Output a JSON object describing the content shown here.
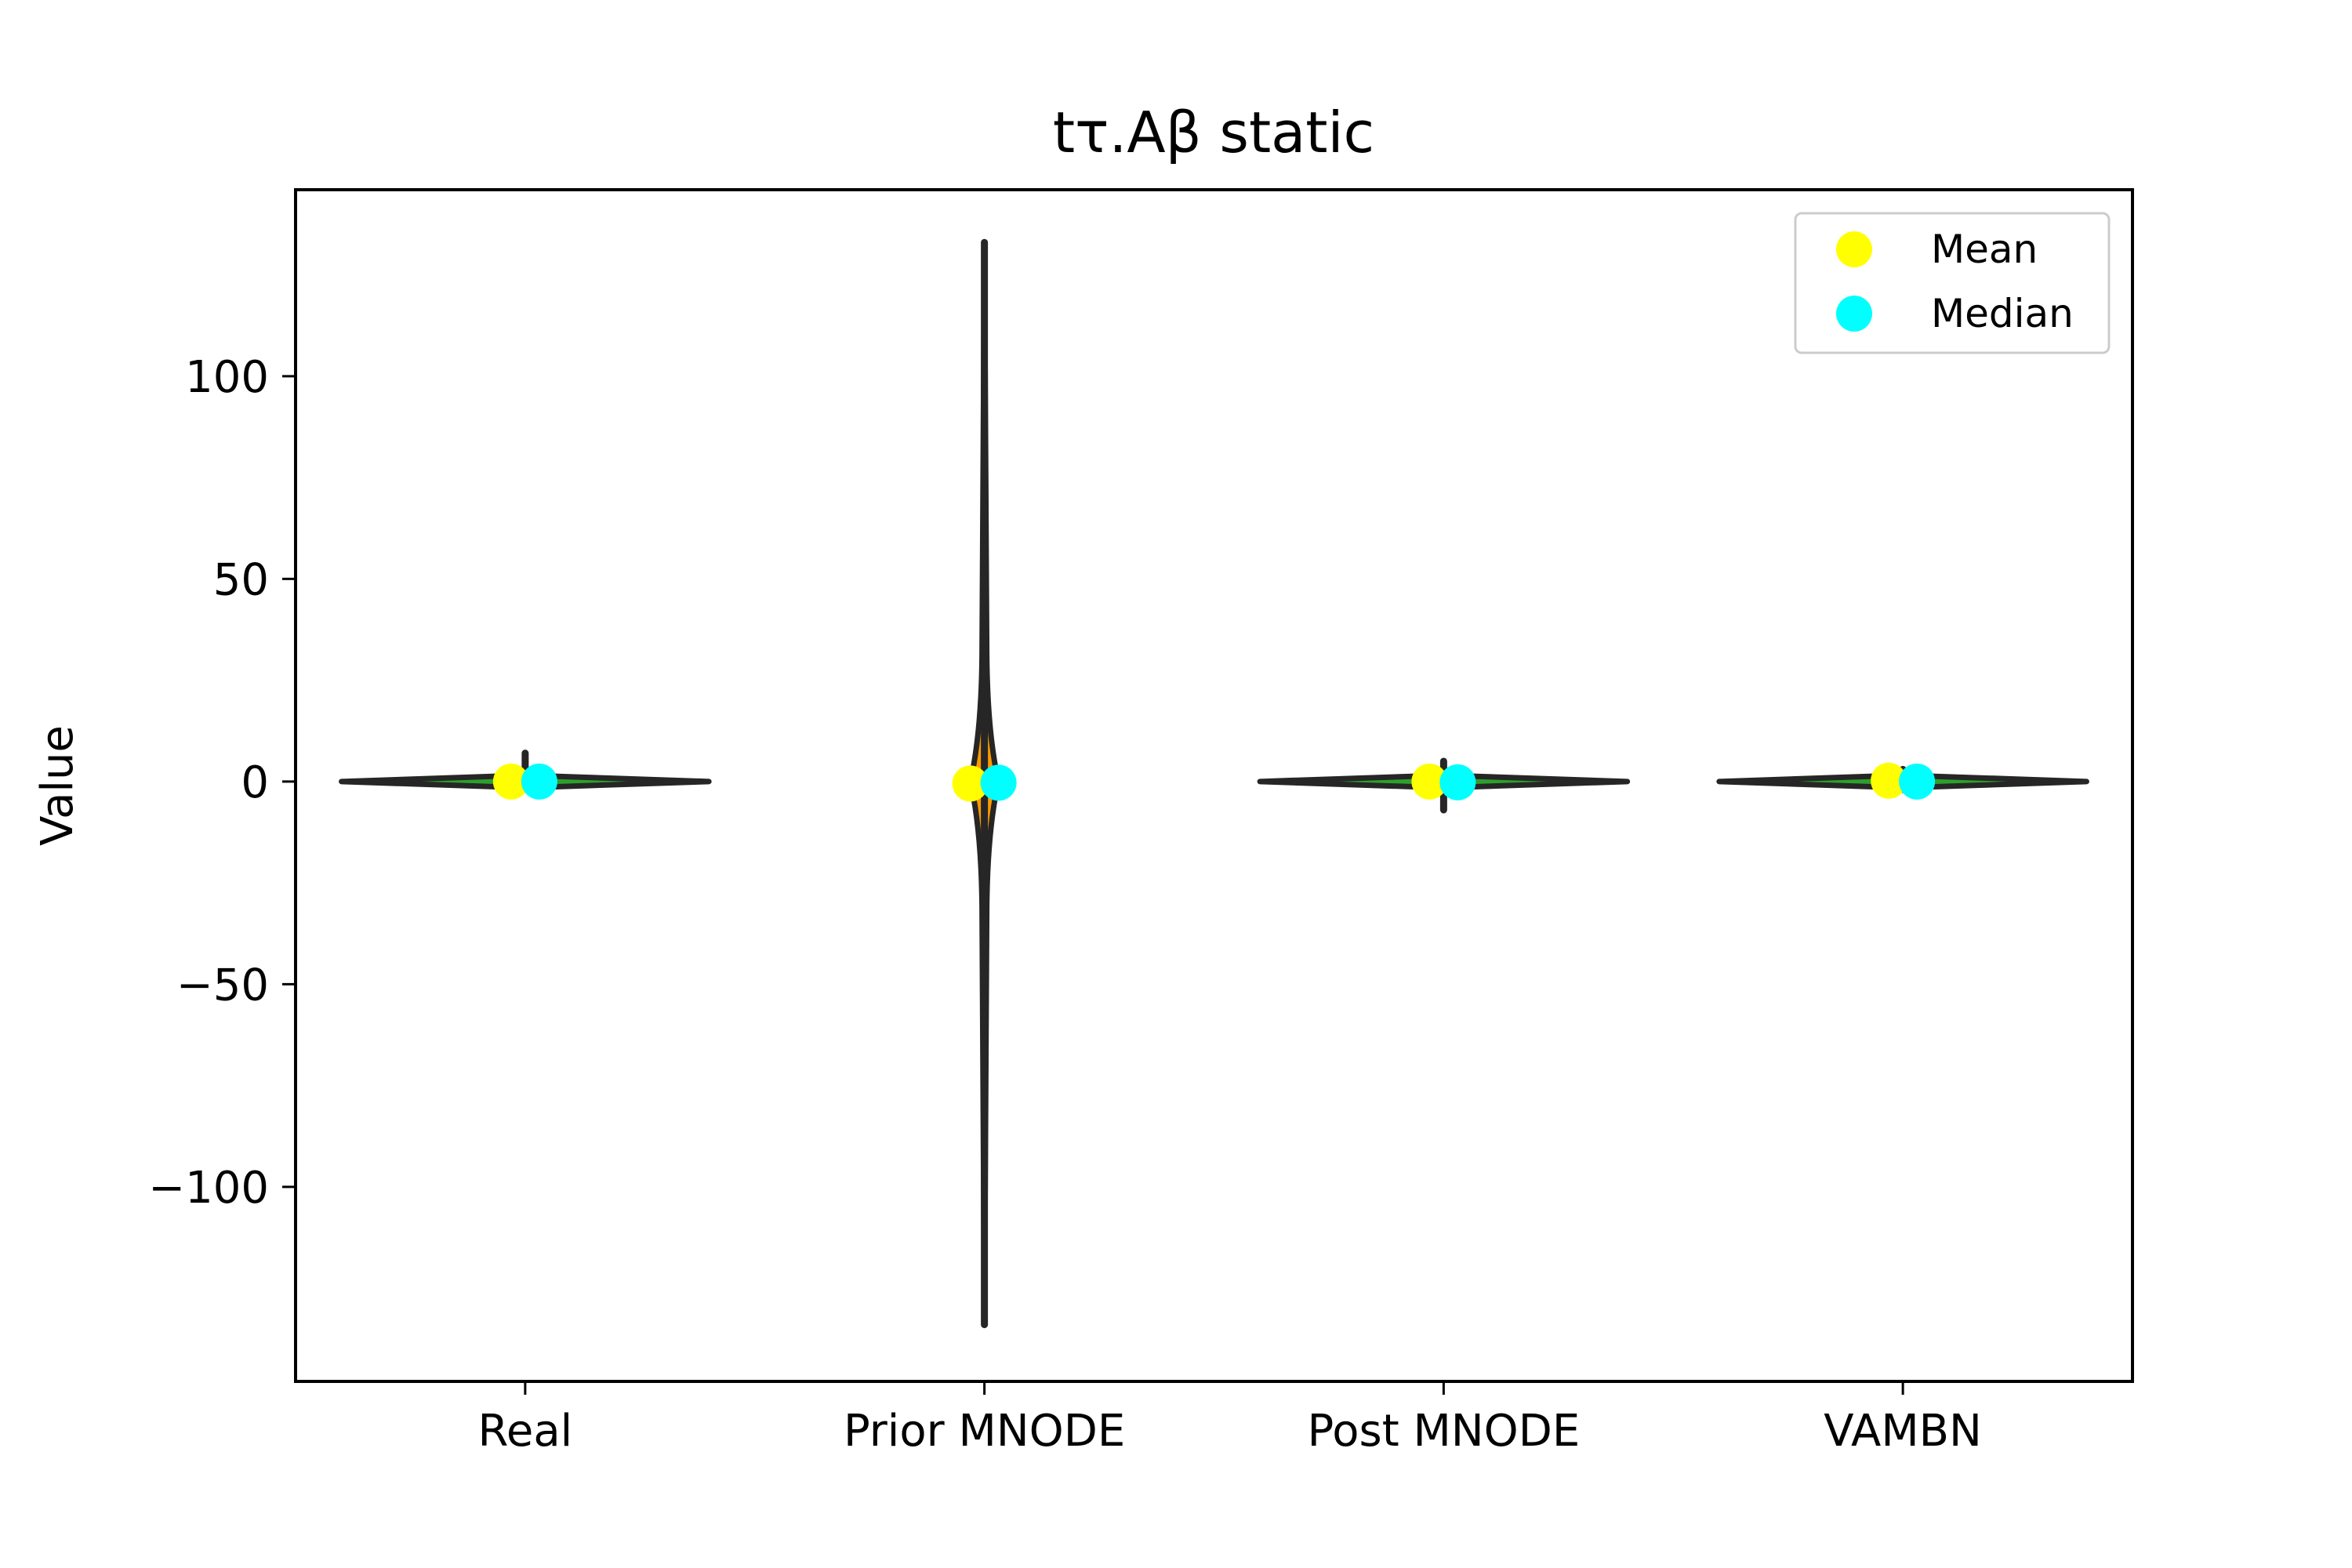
{
  "chart_data": {
    "type": "violin",
    "title": "tτ.Aβ static",
    "xlabel": "",
    "ylabel": "Value",
    "ylim": [
      -148,
      146
    ],
    "yticks": [
      100,
      50,
      0,
      -50,
      -100
    ],
    "ytick_labels": [
      "100",
      "50",
      "0",
      "−50",
      "−100"
    ],
    "categories": [
      "Real",
      "Prior MNODE",
      "Post MNODE",
      "VAMBN"
    ],
    "violins": [
      {
        "category": "Real",
        "min": -1,
        "max": 7,
        "mean": 0,
        "median": 0,
        "fill": "#2ca02c"
      },
      {
        "category": "Prior MNODE",
        "min": -134,
        "max": 133,
        "mean": -0.5,
        "median": -0.3,
        "fill": "#ff9900"
      },
      {
        "category": "Post MNODE",
        "min": -7,
        "max": 5,
        "mean": 0,
        "median": -0.2,
        "fill": "#2ca02c"
      },
      {
        "category": "VAMBN",
        "min": -2,
        "max": 3,
        "mean": 0.2,
        "median": 0,
        "fill": "#2ca02c"
      }
    ],
    "legend": {
      "position": "upper-right",
      "entries": [
        {
          "label": "Mean",
          "color": "#ffff00"
        },
        {
          "label": "Median",
          "color": "#00ffff"
        }
      ]
    },
    "grid": false,
    "colors": {
      "mean_marker": "#ffff00",
      "median_marker": "#00ffff",
      "outline": "#262626"
    }
  }
}
